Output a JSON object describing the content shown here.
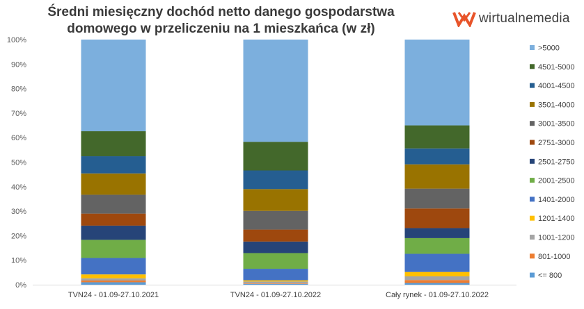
{
  "chart_data": {
    "type": "bar",
    "stacked": true,
    "percent": true,
    "title": "Średni miesięczny dochód netto danego gospodarstwa domowego w przeliczeniu na 1 mieszkańca (w zł)",
    "categories": [
      "TVN24 - 01.09-27.10.2021",
      "TVN24 - 01.09-27.10.2022",
      "Cały rynek - 01.09-27.10.2022"
    ],
    "yticks": [
      "0%",
      "10%",
      "20%",
      "30%",
      "40%",
      "50%",
      "60%",
      "70%",
      "80%",
      "90%",
      "100%"
    ],
    "ylim": [
      0,
      100
    ],
    "grid": false,
    "legend_position": "right",
    "series": [
      {
        "name": "<= 800",
        "color": "#5b9bd5",
        "values": [
          1.0,
          0.3,
          0.7
        ]
      },
      {
        "name": "801-1000",
        "color": "#ed7d31",
        "values": [
          0.7,
          0.2,
          1.2
        ]
      },
      {
        "name": "1001-1200",
        "color": "#a5a5a5",
        "values": [
          0.9,
          0.8,
          1.5
        ]
      },
      {
        "name": "1201-1400",
        "color": "#ffc000",
        "values": [
          1.6,
          0.5,
          1.8
        ]
      },
      {
        "name": "1401-2000",
        "color": "#4472c4",
        "values": [
          6.7,
          4.7,
          7.4
        ]
      },
      {
        "name": "2001-2500",
        "color": "#70ad47",
        "values": [
          7.4,
          6.4,
          6.4
        ]
      },
      {
        "name": "2501-2750",
        "color": "#264478",
        "values": [
          5.8,
          4.7,
          4.1
        ]
      },
      {
        "name": "2751-3000",
        "color": "#9e480e",
        "values": [
          4.9,
          4.9,
          8.0
        ]
      },
      {
        "name": "3001-3500",
        "color": "#636363",
        "values": [
          7.7,
          7.6,
          8.1
        ]
      },
      {
        "name": "3501-4000",
        "color": "#997300",
        "values": [
          8.7,
          8.9,
          9.9
        ]
      },
      {
        "name": "4001-4500",
        "color": "#255e91",
        "values": [
          7.0,
          7.6,
          6.5
        ]
      },
      {
        "name": "4501-5000",
        "color": "#43682b",
        "values": [
          10.2,
          11.7,
          9.4
        ]
      },
      {
        "name": ">5000",
        "color": "#7cafdd",
        "values": [
          37.4,
          41.7,
          35.0
        ]
      }
    ]
  },
  "logo": {
    "text": "wirtualnemedia",
    "color": "#e8542a"
  }
}
